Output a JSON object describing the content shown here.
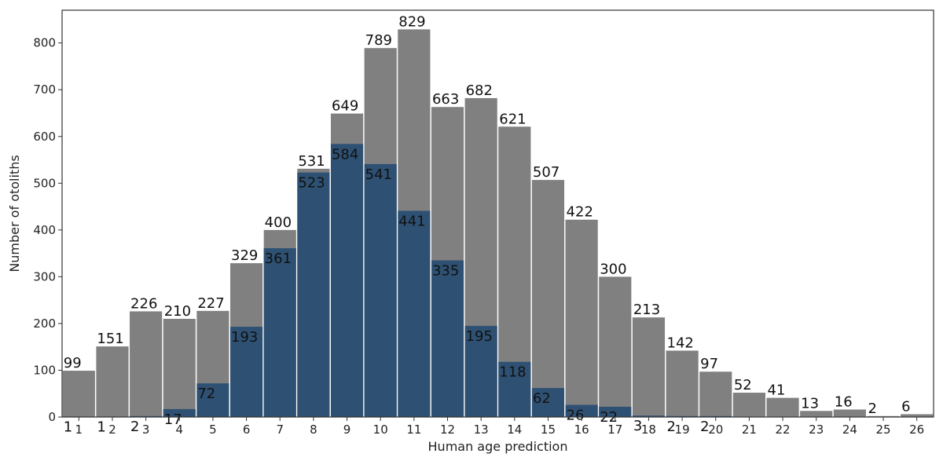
{
  "chart_data": {
    "type": "bar",
    "xlabel": "Human age prediction",
    "ylabel": "Number of otoliths",
    "ylim": [
      0,
      870
    ],
    "yticks": [
      0,
      100,
      200,
      300,
      400,
      500,
      600,
      700,
      800
    ],
    "grid": false,
    "legend": "none",
    "categories": [
      "1",
      "2",
      "3",
      "4",
      "5",
      "6",
      "7",
      "8",
      "9",
      "10",
      "11",
      "12",
      "13",
      "14",
      "15",
      "16",
      "17",
      "18",
      "19",
      "20",
      "21",
      "22",
      "23",
      "24",
      "25",
      "26"
    ],
    "series": [
      {
        "color": "#808080",
        "values": [
          99,
          151,
          226,
          210,
          227,
          329,
          400,
          531,
          649,
          789,
          829,
          663,
          682,
          621,
          507,
          422,
          300,
          213,
          142,
          97,
          52,
          41,
          13,
          16,
          2,
          6
        ]
      },
      {
        "color": "#2e5173",
        "values": [
          1,
          1,
          2,
          17,
          72,
          193,
          361,
          523,
          584,
          541,
          441,
          335,
          195,
          118,
          62,
          26,
          22,
          3,
          2,
          2,
          0,
          0,
          0,
          0,
          0,
          0
        ]
      }
    ]
  }
}
